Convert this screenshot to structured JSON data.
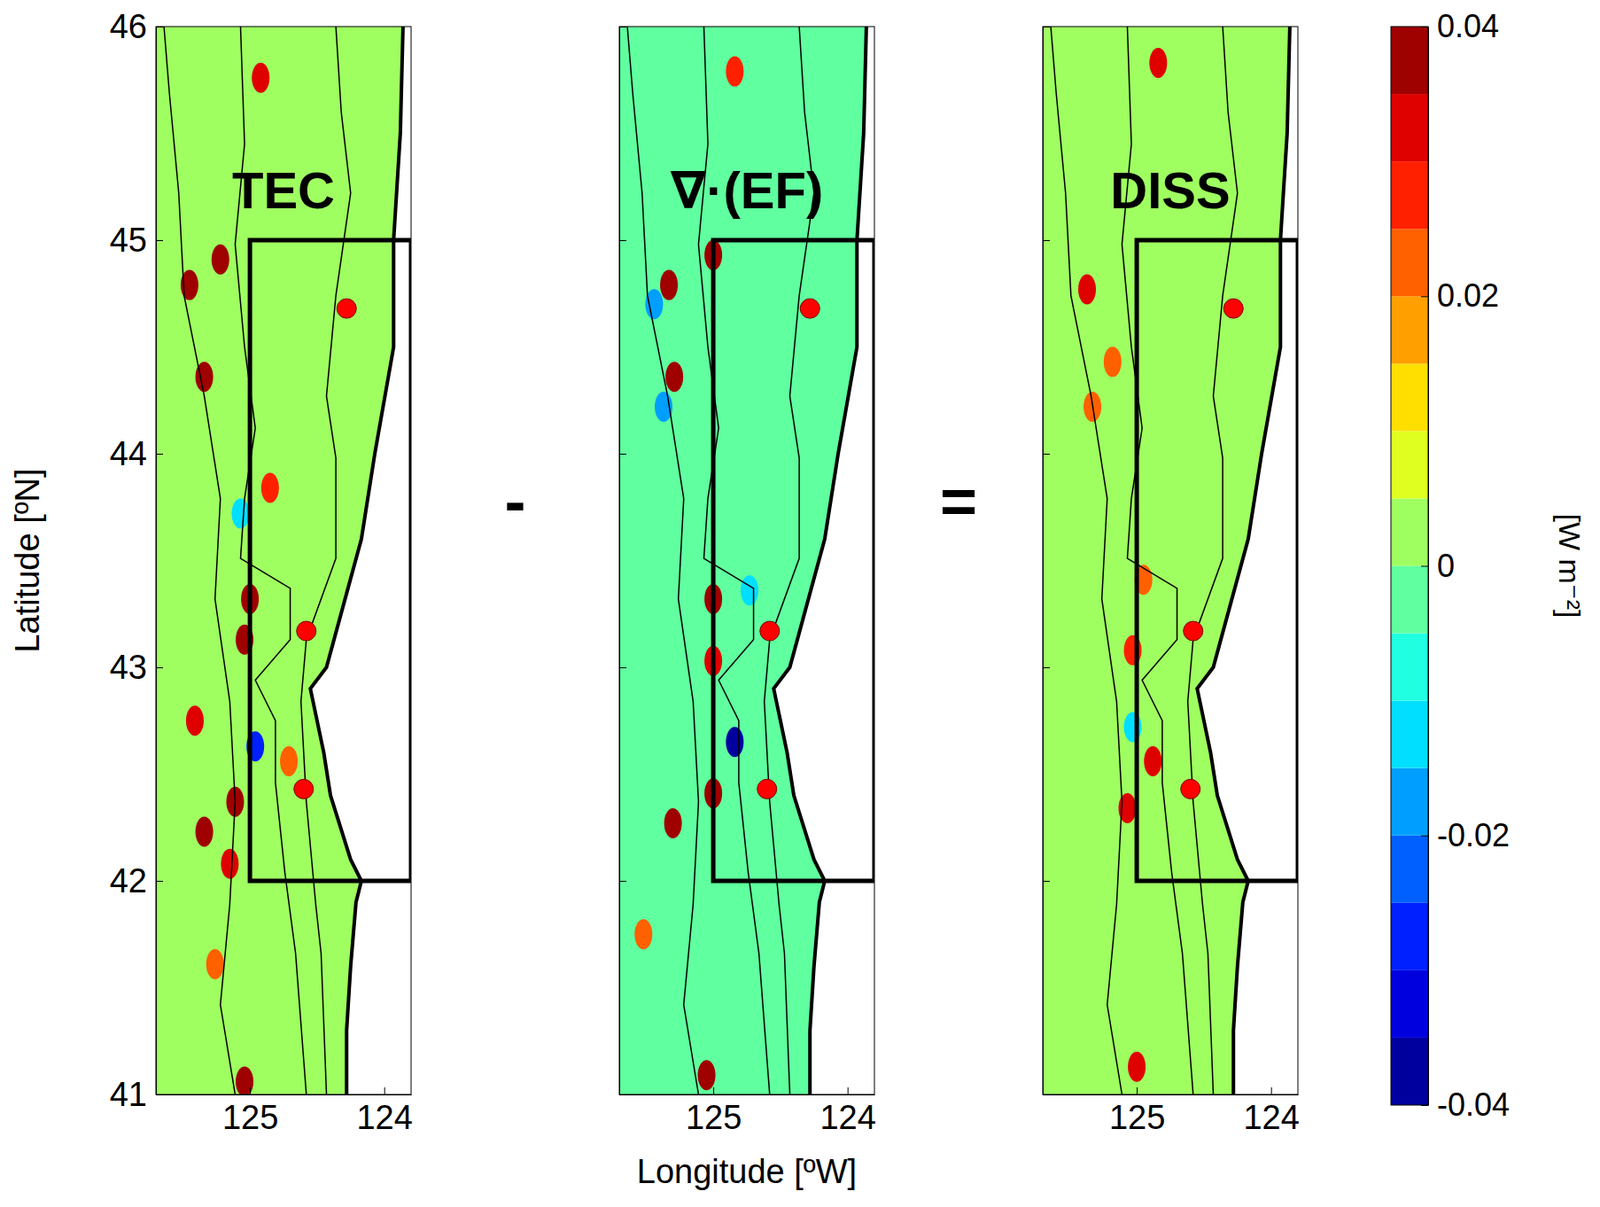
{
  "chart_data": {
    "type": "heatmap",
    "ylabel": "Latitude [ºN]",
    "xlabel": "Longitude [ºW]",
    "xlim": [
      125.7,
      123.8
    ],
    "xticks": [
      125,
      124
    ],
    "ylim": [
      41,
      46
    ],
    "yticks": [
      41,
      42,
      43,
      44,
      45,
      46
    ],
    "operators": [
      "-",
      "="
    ],
    "panels": [
      {
        "title": "TEC",
        "background_value": 0.001,
        "patches": [
          {
            "lon": 125.22,
            "lat": 44.91,
            "value": 0.04
          },
          {
            "lon": 125.45,
            "lat": 44.79,
            "value": 0.04
          },
          {
            "lon": 125.34,
            "lat": 44.36,
            "value": 0.04
          },
          {
            "lon": 124.85,
            "lat": 43.84,
            "value": 0.025
          },
          {
            "lon": 125.0,
            "lat": 43.32,
            "value": 0.04
          },
          {
            "lon": 125.04,
            "lat": 43.13,
            "value": 0.035
          },
          {
            "lon": 125.41,
            "lat": 42.75,
            "value": 0.03
          },
          {
            "lon": 124.96,
            "lat": 42.63,
            "value": -0.03
          },
          {
            "lon": 125.11,
            "lat": 42.37,
            "value": 0.04
          },
          {
            "lon": 125.34,
            "lat": 42.23,
            "value": 0.035
          },
          {
            "lon": 125.15,
            "lat": 42.08,
            "value": 0.03
          },
          {
            "lon": 124.92,
            "lat": 45.76,
            "value": 0.03
          },
          {
            "lon": 125.04,
            "lat": 41.06,
            "value": 0.04
          },
          {
            "lon": 125.26,
            "lat": 41.61,
            "value": 0.02
          },
          {
            "lon": 125.07,
            "lat": 43.72,
            "value": -0.015
          },
          {
            "lon": 124.71,
            "lat": 42.56,
            "value": 0.02
          }
        ]
      },
      {
        "title": "∇·(EF)",
        "background_value": -0.001,
        "patches": [
          {
            "lon": 125.0,
            "lat": 44.93,
            "value": 0.04
          },
          {
            "lon": 125.33,
            "lat": 44.79,
            "value": 0.04
          },
          {
            "lon": 125.44,
            "lat": 44.7,
            "value": -0.02
          },
          {
            "lon": 125.29,
            "lat": 44.36,
            "value": 0.04
          },
          {
            "lon": 125.37,
            "lat": 44.22,
            "value": -0.02
          },
          {
            "lon": 125.0,
            "lat": 43.32,
            "value": 0.035
          },
          {
            "lon": 125.0,
            "lat": 43.03,
            "value": 0.03
          },
          {
            "lon": 124.84,
            "lat": 42.65,
            "value": -0.035
          },
          {
            "lon": 125.0,
            "lat": 42.41,
            "value": 0.04
          },
          {
            "lon": 125.3,
            "lat": 42.27,
            "value": 0.035
          },
          {
            "lon": 125.52,
            "lat": 41.75,
            "value": 0.02
          },
          {
            "lon": 125.05,
            "lat": 41.09,
            "value": 0.04
          },
          {
            "lon": 124.84,
            "lat": 45.79,
            "value": 0.025
          },
          {
            "lon": 124.73,
            "lat": 43.36,
            "value": -0.015
          }
        ]
      },
      {
        "title": "DISS",
        "background_value": 0.002,
        "patches": [
          {
            "lon": 125.37,
            "lat": 44.77,
            "value": 0.03
          },
          {
            "lon": 125.33,
            "lat": 44.22,
            "value": 0.02
          },
          {
            "lon": 125.18,
            "lat": 44.43,
            "value": 0.02
          },
          {
            "lon": 124.95,
            "lat": 43.41,
            "value": 0.02
          },
          {
            "lon": 125.03,
            "lat": 43.08,
            "value": 0.025
          },
          {
            "lon": 124.88,
            "lat": 42.56,
            "value": 0.03
          },
          {
            "lon": 125.07,
            "lat": 42.34,
            "value": 0.03
          },
          {
            "lon": 125.0,
            "lat": 41.13,
            "value": 0.03
          },
          {
            "lon": 124.84,
            "lat": 45.83,
            "value": 0.03
          },
          {
            "lon": 125.03,
            "lat": 42.72,
            "value": -0.015
          }
        ]
      }
    ],
    "colorbar": {
      "label": "[W m⁻²]",
      "range": [
        -0.04,
        0.04
      ],
      "ticks": [
        -0.04,
        -0.02,
        0,
        0.02,
        0.04
      ]
    },
    "coastline": {
      "lon": [
        123.86,
        123.88,
        123.93,
        123.93,
        124.07,
        124.17,
        124.43,
        124.55,
        124.45,
        124.4,
        124.25,
        124.17,
        124.21,
        124.25,
        124.28,
        124.28
      ],
      "lat": [
        46.0,
        45.5,
        45.0,
        44.5,
        44.0,
        43.6,
        43.0,
        42.9,
        42.6,
        42.4,
        42.1,
        42.0,
        41.9,
        41.6,
        41.3,
        41.0
      ]
    },
    "isobaths": [
      {
        "lon": [
          125.64,
          125.6,
          125.53,
          125.49,
          125.34,
          125.22,
          125.26,
          125.15,
          125.11,
          125.15,
          125.22,
          125.11
        ],
        "lat": [
          46.0,
          45.69,
          45.22,
          44.74,
          44.27,
          43.79,
          43.32,
          42.84,
          42.37,
          41.89,
          41.42,
          41.0
        ]
      },
      {
        "lon": [
          125.07,
          125.04,
          125.11,
          125.04,
          124.96,
          125.04,
          125.07,
          124.7,
          124.7,
          124.96,
          124.81,
          124.81,
          124.74,
          124.66,
          124.58
        ],
        "lat": [
          46.0,
          45.45,
          44.98,
          44.5,
          44.12,
          43.79,
          43.51,
          43.37,
          43.13,
          42.94,
          42.75,
          42.46,
          42.04,
          41.66,
          41.0
        ]
      },
      {
        "lon": [
          124.36,
          124.32,
          124.25,
          124.36,
          124.43,
          124.36,
          124.36,
          124.58,
          124.62,
          124.58,
          124.51,
          124.47,
          124.43
        ],
        "lat": [
          46.0,
          45.6,
          45.22,
          44.74,
          44.27,
          43.98,
          43.51,
          43.13,
          42.84,
          42.37,
          41.89,
          41.66,
          41.0
        ]
      }
    ],
    "box": {
      "lon": [
        125,
        123.8
      ],
      "lat": [
        42,
        45
      ]
    },
    "stations": {
      "lon": [
        124.28,
        124.58,
        124.6
      ],
      "lat": [
        44.68,
        43.17,
        42.43
      ]
    }
  }
}
